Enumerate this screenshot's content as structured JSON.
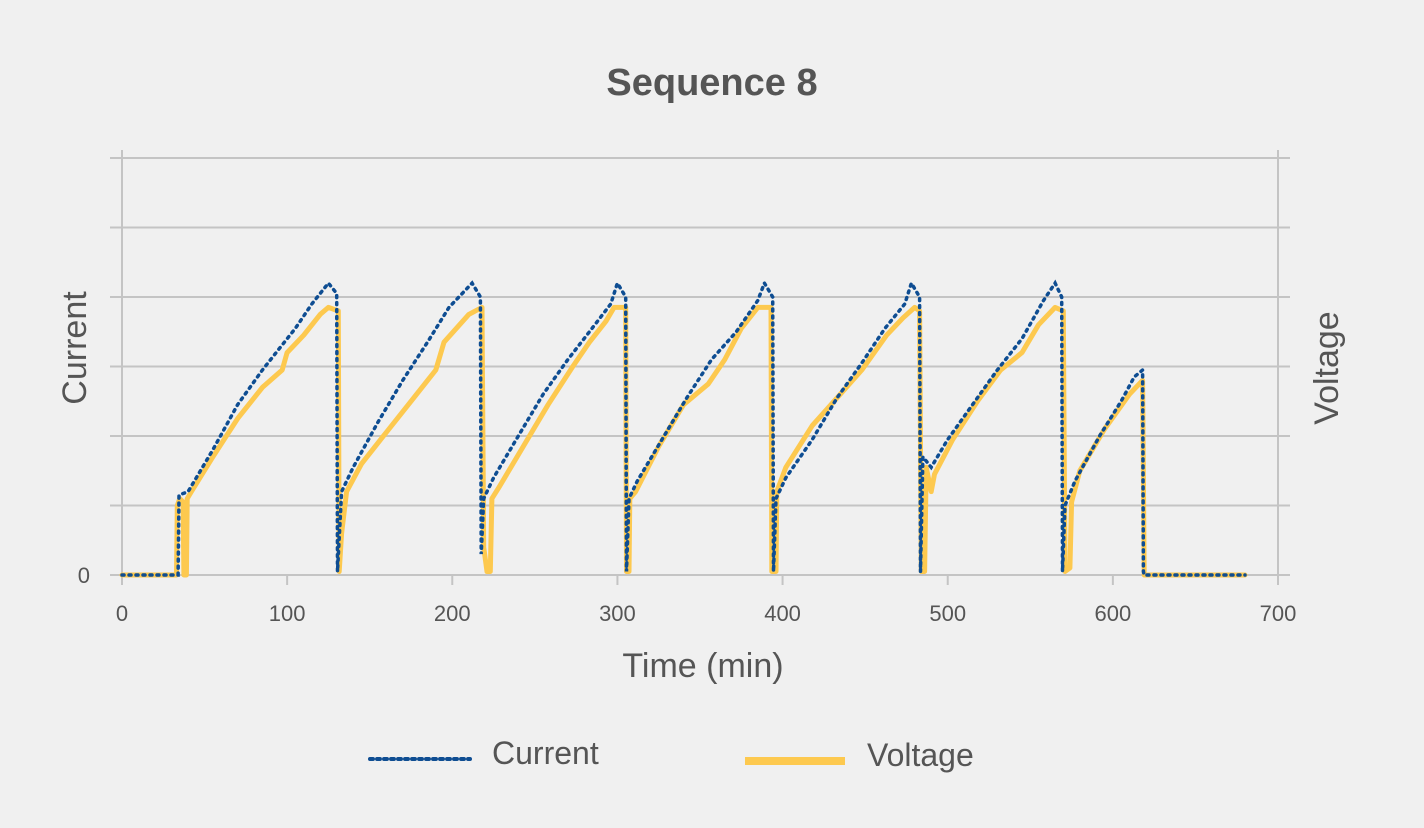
{
  "chart_data": {
    "type": "line",
    "title": "Sequence 8",
    "xlabel": "Time (min)",
    "ylabel": "Current",
    "y2label": "Voltage",
    "xlim": [
      0,
      700
    ],
    "ylim": [
      0,
      6
    ],
    "x_ticks": [
      0,
      100,
      200,
      300,
      400,
      500,
      600,
      700
    ],
    "y_tick_labels": [
      {
        "value": 0,
        "label": "0"
      }
    ],
    "grid": "horizontal",
    "legend_position": "bottom",
    "colors": {
      "current": "#0e4d92",
      "voltage": "#fdc94f",
      "text": "#555555",
      "grid": "#c4c4c4"
    },
    "series": [
      {
        "name": "Current",
        "style": "dotted",
        "axis": "left",
        "points": [
          [
            0,
            0
          ],
          [
            30,
            0
          ],
          [
            34,
            0
          ],
          [
            34.5,
            1.15
          ],
          [
            40,
            1.2
          ],
          [
            55,
            1.8
          ],
          [
            70,
            2.45
          ],
          [
            85,
            2.95
          ],
          [
            95,
            3.25
          ],
          [
            105,
            3.55
          ],
          [
            115,
            3.9
          ],
          [
            125,
            4.2
          ],
          [
            130,
            4.05
          ],
          [
            130.5,
            0.05
          ],
          [
            133,
            1.2
          ],
          [
            140,
            1.55
          ],
          [
            155,
            2.2
          ],
          [
            170,
            2.8
          ],
          [
            185,
            3.35
          ],
          [
            198,
            3.85
          ],
          [
            212,
            4.2
          ],
          [
            217,
            4.0
          ],
          [
            217.5,
            0.3
          ],
          [
            219,
            1.1
          ],
          [
            225,
            1.4
          ],
          [
            240,
            2.0
          ],
          [
            255,
            2.6
          ],
          [
            270,
            3.1
          ],
          [
            283,
            3.5
          ],
          [
            296,
            3.9
          ],
          [
            300,
            4.2
          ],
          [
            305,
            4.0
          ],
          [
            305.5,
            0.05
          ],
          [
            307,
            1.1
          ],
          [
            312,
            1.35
          ],
          [
            327,
            1.95
          ],
          [
            342,
            2.55
          ],
          [
            357,
            3.1
          ],
          [
            372,
            3.5
          ],
          [
            385,
            3.95
          ],
          [
            389,
            4.2
          ],
          [
            394,
            4.0
          ],
          [
            394.5,
            0.05
          ],
          [
            396,
            1.1
          ],
          [
            402,
            1.4
          ],
          [
            418,
            1.95
          ],
          [
            433,
            2.55
          ],
          [
            448,
            3.05
          ],
          [
            462,
            3.55
          ],
          [
            474,
            3.9
          ],
          [
            478,
            4.2
          ],
          [
            483,
            4.0
          ],
          [
            483.5,
            0.05
          ],
          [
            485,
            1.7
          ],
          [
            490,
            1.55
          ],
          [
            500,
            1.95
          ],
          [
            515,
            2.45
          ],
          [
            530,
            2.95
          ],
          [
            545,
            3.4
          ],
          [
            558,
            3.95
          ],
          [
            565,
            4.2
          ],
          [
            569,
            4.0
          ],
          [
            569.5,
            0.05
          ],
          [
            571,
            1.0
          ],
          [
            577,
            1.35
          ],
          [
            592,
            2.0
          ],
          [
            605,
            2.5
          ],
          [
            613,
            2.85
          ],
          [
            618,
            2.95
          ],
          [
            618.5,
            0.05
          ],
          [
            619,
            0
          ],
          [
            680,
            0
          ]
        ]
      },
      {
        "name": "Voltage",
        "style": "solid",
        "axis": "right",
        "points": [
          [
            0,
            0
          ],
          [
            30,
            0
          ],
          [
            33,
            0
          ],
          [
            33.5,
            1.0
          ],
          [
            35,
            1.1
          ],
          [
            37,
            1.05
          ],
          [
            37.5,
            0
          ],
          [
            39,
            0
          ],
          [
            39.5,
            1.1
          ],
          [
            42,
            1.2
          ],
          [
            55,
            1.7
          ],
          [
            70,
            2.25
          ],
          [
            85,
            2.7
          ],
          [
            97,
            2.95
          ],
          [
            100,
            3.2
          ],
          [
            110,
            3.45
          ],
          [
            120,
            3.75
          ],
          [
            125,
            3.85
          ],
          [
            131,
            3.8
          ],
          [
            131.5,
            0.05
          ],
          [
            133,
            0.6
          ],
          [
            136,
            1.2
          ],
          [
            145,
            1.6
          ],
          [
            160,
            2.05
          ],
          [
            175,
            2.5
          ],
          [
            190,
            2.95
          ],
          [
            195,
            3.35
          ],
          [
            210,
            3.75
          ],
          [
            218,
            3.85
          ],
          [
            219,
            0.4
          ],
          [
            221,
            0.05
          ],
          [
            223,
            0.05
          ],
          [
            224,
            1.1
          ],
          [
            228,
            1.25
          ],
          [
            243,
            1.85
          ],
          [
            258,
            2.45
          ],
          [
            273,
            3.0
          ],
          [
            283,
            3.35
          ],
          [
            293,
            3.65
          ],
          [
            298,
            3.85
          ],
          [
            305,
            3.85
          ],
          [
            305.5,
            0.05
          ],
          [
            307,
            0.05
          ],
          [
            307.5,
            1.1
          ],
          [
            311,
            1.2
          ],
          [
            325,
            1.85
          ],
          [
            340,
            2.45
          ],
          [
            355,
            2.75
          ],
          [
            365,
            3.1
          ],
          [
            375,
            3.55
          ],
          [
            385,
            3.85
          ],
          [
            393,
            3.85
          ],
          [
            393.5,
            0.05
          ],
          [
            396,
            0.05
          ],
          [
            396.5,
            1.2
          ],
          [
            402,
            1.55
          ],
          [
            418,
            2.15
          ],
          [
            433,
            2.55
          ],
          [
            448,
            2.95
          ],
          [
            463,
            3.45
          ],
          [
            473,
            3.7
          ],
          [
            480,
            3.85
          ],
          [
            483,
            3.8
          ],
          [
            484,
            0.05
          ],
          [
            486,
            0.05
          ],
          [
            487,
            1.55
          ],
          [
            490,
            1.2
          ],
          [
            492,
            1.45
          ],
          [
            503,
            1.95
          ],
          [
            518,
            2.5
          ],
          [
            532,
            2.95
          ],
          [
            545,
            3.2
          ],
          [
            555,
            3.6
          ],
          [
            565,
            3.85
          ],
          [
            570,
            3.8
          ],
          [
            571,
            0.05
          ],
          [
            574,
            0.1
          ],
          [
            575,
            1.05
          ],
          [
            580,
            1.5
          ],
          [
            595,
            2.1
          ],
          [
            610,
            2.6
          ],
          [
            618,
            2.8
          ],
          [
            619,
            0
          ],
          [
            680,
            0
          ]
        ]
      }
    ]
  }
}
